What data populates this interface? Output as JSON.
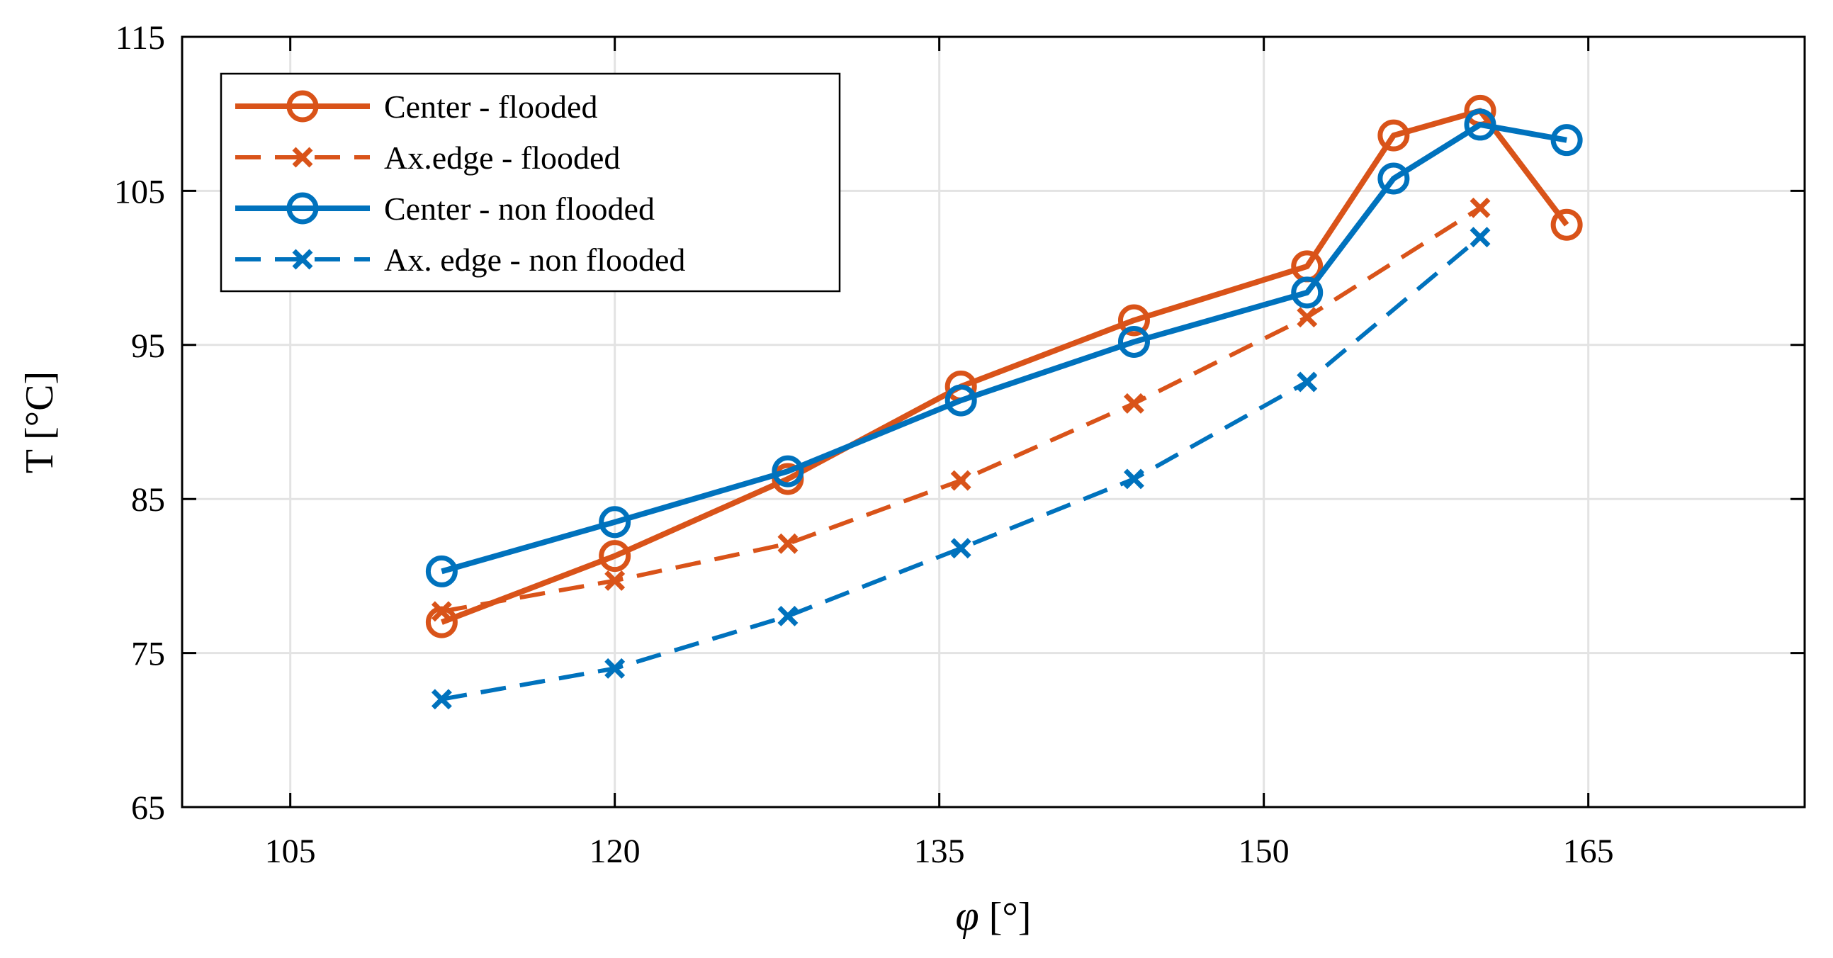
{
  "chart_data": {
    "type": "line",
    "title": "",
    "xlabel": "φ [°]",
    "xlabel_symbol": "φ",
    "xlabel_unit": "[°]",
    "ylabel": "T [°C]",
    "xlim": [
      100,
      175
    ],
    "ylim": [
      65,
      115
    ],
    "xticks": [
      105,
      120,
      135,
      150,
      165
    ],
    "yticks": [
      65,
      75,
      85,
      95,
      105,
      115
    ],
    "grid": true,
    "legend_position": "top-left",
    "series": [
      {
        "name": "Center - flooded",
        "color": "#D95319",
        "line_style": "solid",
        "marker": "circle",
        "x": [
          112,
          120,
          128,
          136,
          144,
          152,
          156,
          160,
          164
        ],
        "y": [
          77.0,
          81.3,
          86.3,
          92.3,
          96.6,
          100.1,
          108.6,
          110.2,
          102.8
        ]
      },
      {
        "name": "Ax.edge - flooded",
        "color": "#D95319",
        "line_style": "dashed",
        "marker": "x",
        "x": [
          112,
          120,
          128,
          136,
          144,
          152,
          160
        ],
        "y": [
          77.7,
          79.7,
          82.1,
          86.2,
          91.2,
          96.8,
          103.9
        ]
      },
      {
        "name": "Center - non flooded",
        "color": "#0072BD",
        "line_style": "solid",
        "marker": "circle",
        "x": [
          112,
          120,
          128,
          136,
          144,
          152,
          156,
          160,
          164
        ],
        "y": [
          80.3,
          83.5,
          86.8,
          91.4,
          95.2,
          98.4,
          105.8,
          109.3,
          108.3
        ]
      },
      {
        "name": "Ax. edge - non flooded",
        "color": "#0072BD",
        "line_style": "dashed",
        "marker": "x",
        "x": [
          112,
          120,
          128,
          136,
          144,
          152,
          160
        ],
        "y": [
          72.0,
          74.0,
          77.4,
          81.8,
          86.3,
          92.6,
          102.0
        ]
      }
    ]
  }
}
